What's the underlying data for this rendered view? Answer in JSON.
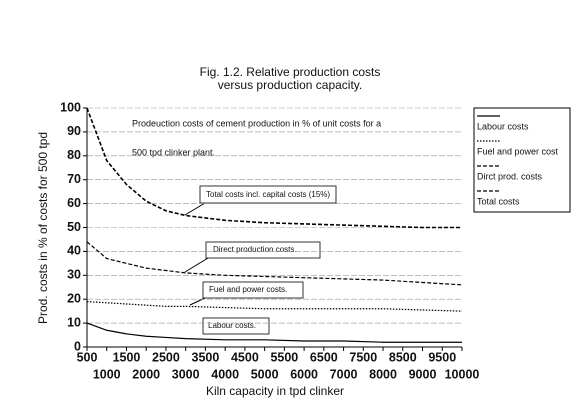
{
  "chart_data": {
    "type": "line",
    "title_lines": [
      "Fig. 1.2. Relative production costs",
      "versus production capacity."
    ],
    "x_label": "Kiln capacity in tpd clinker",
    "y_label": "Prod. costs in % of costs for 500 tpd",
    "annotations": [
      "Prodeuction costs of cement production in % of unit costs for a",
      "500 tpd clinker plant.",
      "Total costs incl. capital costs (15%)",
      "Direct production costs.",
      "Fuel and power costs.",
      "Labour costs."
    ],
    "x": [
      500,
      1000,
      1500,
      2000,
      2500,
      3000,
      4000,
      5000,
      6000,
      7000,
      8000,
      9000,
      10000
    ],
    "series": [
      {
        "name": "Labour costs",
        "color": "#000000",
        "style": "solid",
        "values": [
          10,
          7,
          5.5,
          4.5,
          4,
          3.5,
          3,
          3,
          2.5,
          2.5,
          2,
          2,
          2
        ]
      },
      {
        "name": "Fuel and power cost",
        "color": "#000000",
        "style": "dotted",
        "values": [
          19,
          18.5,
          18,
          17.5,
          17,
          17,
          16.5,
          16,
          16,
          16,
          16,
          15.5,
          15
        ]
      },
      {
        "name": "Dirct prod. costs",
        "color": "#000000",
        "style": "dashed",
        "values": [
          44,
          37,
          35,
          33,
          32,
          31,
          30,
          29.5,
          29,
          28.5,
          28,
          27,
          26
        ]
      },
      {
        "name": "Total costs",
        "color": "#000000",
        "style": "dashed",
        "values": [
          100,
          78,
          68,
          61,
          57,
          55,
          53,
          52,
          51.5,
          51,
          50.5,
          50,
          50
        ]
      }
    ],
    "xlim": [
      500,
      10000
    ],
    "xticks": [
      500,
      1000,
      1500,
      2000,
      2500,
      3000,
      3500,
      4000,
      4500,
      5000,
      5500,
      6000,
      6500,
      7000,
      7500,
      8000,
      8500,
      9000,
      9500,
      10000
    ],
    "ylim": [
      0,
      100
    ],
    "yticks": [
      0,
      10,
      20,
      30,
      40,
      50,
      60,
      70,
      80,
      90,
      100
    ],
    "grid": true,
    "legend": "right"
  }
}
